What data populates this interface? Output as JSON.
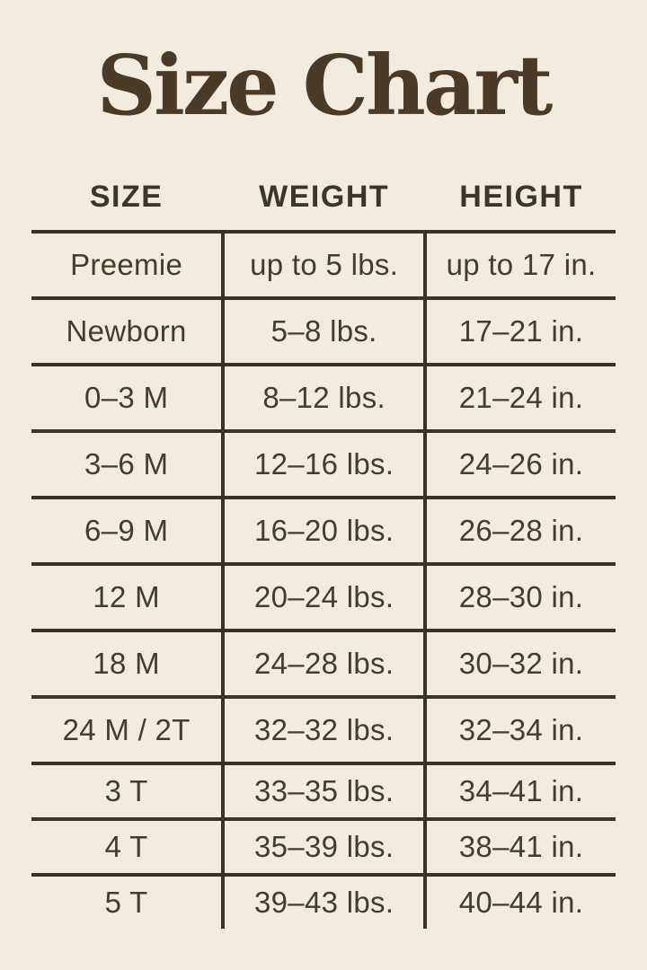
{
  "page": {
    "background_color": "#f2ebe0",
    "text_color": "#463b2c",
    "line_color": "#3b3227",
    "title_color": "#4a3a26"
  },
  "title": "Size Chart",
  "chart_data": {
    "type": "table",
    "title": "Size Chart",
    "columns": [
      "SIZE",
      "WEIGHT",
      "HEIGHT"
    ],
    "rows": [
      [
        "Preemie",
        "up to 5 lbs.",
        "up to 17 in."
      ],
      [
        "Newborn",
        "5–8 lbs.",
        "17–21 in."
      ],
      [
        "0–3 M",
        "8–12 lbs.",
        "21–24 in."
      ],
      [
        "3–6 M",
        "12–16 lbs.",
        "24–26 in."
      ],
      [
        "6–9 M",
        "16–20 lbs.",
        "26–28 in."
      ],
      [
        "12 M",
        "20–24 lbs.",
        "28–30 in."
      ],
      [
        "18 M",
        "24–28 lbs.",
        "30–32 in."
      ],
      [
        "24 M / 2T",
        "32–32 lbs.",
        "32–34 in."
      ],
      [
        "3 T",
        "33–35 lbs.",
        "34–41 in."
      ],
      [
        "4 T",
        "35–39 lbs.",
        "38–41 in."
      ],
      [
        "5 T",
        "39–43 lbs.",
        "40–44 in."
      ]
    ]
  }
}
